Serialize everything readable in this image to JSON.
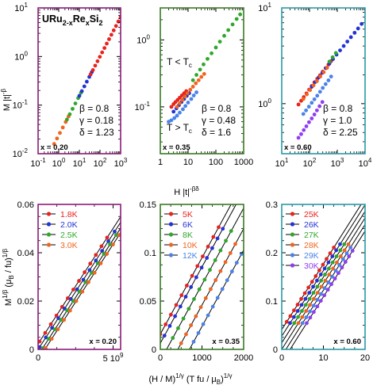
{
  "figure": {
    "compound": {
      "base": "URu",
      "sub1": "2-x",
      "mid1": "Re",
      "sub2": "x",
      "mid2": "Si",
      "sub3": "2"
    },
    "top_ylabel": "M |t|",
    "top_ylabel_exp": "-β",
    "top_xlabel": "H |t|",
    "top_xlabel_exp": "-βδ",
    "bottom_ylabel": "M",
    "bottom_ylabel_sup1": "1/β",
    "bottom_ylabel_mid": "(μ",
    "bottom_ylabel_sub": "B",
    "bottom_ylabel_mid2": " / fu)",
    "bottom_ylabel_sup2": "1/β",
    "bottom_xlabel": "(H / M)",
    "bottom_xlabel_sup1": "1/γ",
    "bottom_xlabel_mid": " (T fu / μ",
    "bottom_xlabel_sub": "B",
    "bottom_xlabel_mid2": ")",
    "bottom_xlabel_sup2": "1/γ"
  },
  "colors": {
    "red": "#e8221c",
    "blue": "#2233d6",
    "green": "#2ea82a",
    "orange": "#f0641e",
    "lightblue": "#4a82e8",
    "purple": "#8f3df0",
    "frame_x020": "#8b1a7a",
    "frame_x035": "#3a7a22",
    "frame_x060": "#2a9aa6"
  },
  "chart_data": [
    {
      "id": "top-x020",
      "type": "scatter",
      "xscale": "log",
      "yscale": "log",
      "xlim": [
        0.1,
        1000
      ],
      "ylim": [
        0.01,
        10
      ],
      "xtick_labels": [
        "10",
        "10",
        "10",
        "10",
        "10"
      ],
      "xtick_exps": [
        "-1",
        "0",
        "1",
        "2",
        "3"
      ],
      "ytick_labels": [
        "10",
        "10",
        "10",
        "10"
      ],
      "ytick_exps": [
        "-2",
        "-1",
        "0",
        "1"
      ],
      "annotations": {
        "beta": "β = 0.8",
        "gamma": "γ = 0.18",
        "delta": "δ = 1.23",
        "x_label": "x = 0.20"
      },
      "series": [
        {
          "color": "orange",
          "x_range": [
            0.6,
            3
          ],
          "slope": 0.81,
          "y_at_1": 0.024,
          "n": 6
        },
        {
          "color": "green",
          "x_range": [
            2.5,
            12
          ],
          "slope": 0.81,
          "y_at_1": 0.024,
          "n": 6
        },
        {
          "color": "blue",
          "x_range": [
            10,
            40
          ],
          "slope": 0.81,
          "y_at_1": 0.024,
          "n": 6
        },
        {
          "color": "red",
          "x_range": [
            35,
            1000
          ],
          "slope": 0.81,
          "y_at_1": 0.024,
          "n": 14
        }
      ]
    },
    {
      "id": "top-x035",
      "type": "scatter",
      "xscale": "log",
      "yscale": "log",
      "xlim": [
        1,
        1000
      ],
      "ylim": [
        0.02,
        3
      ],
      "xtick_labels": [
        "1",
        "10",
        "100",
        "1000"
      ],
      "ytick_labels": [
        "10",
        "10"
      ],
      "ytick_exps": [
        "-1",
        "0"
      ],
      "annotations": {
        "beta": "β = 0.8",
        "gamma": "γ = 0.48",
        "delta": "δ = 1.6",
        "tlt": "T < T",
        "tlt_sub": "c",
        "tgt": "T > T",
        "tgt_sub": "c",
        "x_label": "x = 0.35"
      },
      "series": [
        {
          "color": "red",
          "points": [
            [
              2.5,
              0.1
            ],
            [
              3,
              0.11
            ],
            [
              3.5,
              0.118
            ],
            [
              4.2,
              0.127
            ],
            [
              5,
              0.137
            ],
            [
              6,
              0.148
            ],
            [
              7.2,
              0.16
            ],
            [
              8.6,
              0.172
            ]
          ]
        },
        {
          "color": "blue",
          "points": [
            [
              3,
              0.085
            ],
            [
              3.8,
              0.095
            ],
            [
              4.7,
              0.106
            ],
            [
              5.8,
              0.118
            ],
            [
              7.2,
              0.131
            ],
            [
              9,
              0.146
            ],
            [
              11,
              0.16
            ]
          ]
        },
        {
          "color": "green",
          "points": [
            [
              15,
              0.25
            ],
            [
              20,
              0.3
            ],
            [
              27,
              0.36
            ],
            [
              36,
              0.43
            ],
            [
              50,
              0.52
            ],
            [
              70,
              0.63
            ],
            [
              100,
              0.77
            ],
            [
              140,
              0.94
            ],
            [
              200,
              1.15
            ],
            [
              280,
              1.4
            ],
            [
              400,
              1.7
            ],
            [
              560,
              2.05
            ],
            [
              750,
              2.4
            ]
          ]
        },
        {
          "color": "orange",
          "points": [
            [
              4,
              0.1
            ],
            [
              5,
              0.113
            ],
            [
              6.2,
              0.127
            ],
            [
              7.7,
              0.143
            ],
            [
              9.5,
              0.16
            ],
            [
              12,
              0.18
            ],
            [
              15,
              0.2
            ],
            [
              19,
              0.225
            ],
            [
              24,
              0.25
            ],
            [
              30,
              0.28
            ],
            [
              38,
              0.31
            ]
          ]
        },
        {
          "color": "lightblue",
          "points": [
            [
              2,
              0.06
            ],
            [
              2.5,
              0.063
            ],
            [
              3.2,
              0.068
            ],
            [
              4,
              0.074
            ],
            [
              5,
              0.082
            ],
            [
              6.5,
              0.092
            ],
            [
              8,
              0.103
            ],
            [
              10,
              0.116
            ],
            [
              13,
              0.131
            ],
            [
              16,
              0.148
            ],
            [
              20,
              0.165
            ]
          ]
        }
      ]
    },
    {
      "id": "top-x060",
      "type": "scatter",
      "xscale": "log",
      "yscale": "log",
      "xlim": [
        10,
        10000
      ],
      "ylim": [
        0.3,
        10
      ],
      "xtick_labels": [
        "10",
        "10",
        "10",
        "10"
      ],
      "xtick_exps": [
        "1",
        "2",
        "3",
        "4"
      ],
      "ytick_labels": [
        "10",
        "10"
      ],
      "ytick_exps": [
        "0",
        "1"
      ],
      "annotations": {
        "beta": "β = 0.8",
        "gamma": "γ = 1.0",
        "delta": "δ = 2.25",
        "x_label": "x = 0.60"
      },
      "series": [
        {
          "color": "red",
          "points": [
            [
              40,
              0.98
            ],
            [
              50,
              1.07
            ],
            [
              62,
              1.17
            ],
            [
              78,
              1.28
            ],
            [
              97,
              1.4
            ],
            [
              120,
              1.53
            ],
            [
              150,
              1.67
            ],
            [
              190,
              1.82
            ],
            [
              240,
              1.98
            ],
            [
              300,
              2.16
            ],
            [
              380,
              2.35
            ],
            [
              480,
              2.56
            ],
            [
              600,
              2.78
            ]
          ]
        },
        {
          "color": "blue",
          "points": [
            [
              120,
              1.5
            ],
            [
              160,
              1.68
            ],
            [
              215,
              1.88
            ],
            [
              290,
              2.1
            ],
            [
              390,
              2.35
            ],
            [
              520,
              2.62
            ],
            [
              700,
              2.92
            ],
            [
              940,
              3.25
            ],
            [
              1260,
              3.6
            ],
            [
              1700,
              4.0
            ],
            [
              2300,
              4.45
            ],
            [
              3100,
              4.95
            ],
            [
              4200,
              5.5
            ],
            [
              5600,
              6.1
            ],
            [
              7500,
              6.8
            ]
          ]
        },
        {
          "color": "orange",
          "points": [
            [
              60,
              1.12
            ],
            [
              80,
              1.25
            ],
            [
              105,
              1.39
            ],
            [
              140,
              1.55
            ],
            [
              185,
              1.72
            ],
            [
              245,
              1.92
            ],
            [
              325,
              2.13
            ],
            [
              430,
              2.37
            ]
          ]
        },
        {
          "color": "green",
          "points": [
            [
              520,
              2.75
            ],
            [
              680,
              3.05
            ],
            [
              890,
              3.38
            ]
          ]
        },
        {
          "color": "lightblue",
          "points": [
            [
              60,
              0.78
            ],
            [
              75,
              0.85
            ],
            [
              95,
              0.93
            ],
            [
              120,
              1.02
            ],
            [
              150,
              1.11
            ],
            [
              190,
              1.21
            ],
            [
              240,
              1.33
            ],
            [
              300,
              1.46
            ],
            [
              380,
              1.6
            ],
            [
              480,
              1.75
            ],
            [
              600,
              1.92
            ]
          ]
        },
        {
          "color": "purple",
          "points": [
            [
              40,
              0.44
            ],
            [
              50,
              0.48
            ],
            [
              62,
              0.53
            ],
            [
              77,
              0.58
            ],
            [
              96,
              0.64
            ],
            [
              120,
              0.7
            ],
            [
              150,
              0.77
            ],
            [
              185,
              0.85
            ],
            [
              230,
              0.94
            ],
            [
              290,
              1.04
            ]
          ]
        }
      ]
    },
    {
      "id": "bottom-x020",
      "type": "line",
      "xlim": [
        0,
        5500000000.0
      ],
      "ylim": [
        0,
        0.06
      ],
      "xtick_labels": [
        "0",
        "5 10"
      ],
      "xtick_values": [
        0,
        5000000000.0
      ],
      "xtick_exp_label": "9",
      "ytick_labels": [
        "0",
        "0.02",
        "0.04",
        "0.06"
      ],
      "ytick_values": [
        0,
        0.02,
        0.04,
        0.06
      ],
      "x_label": "x = 0.20",
      "legend": [
        "1.8K",
        "2.0K",
        "2.5K",
        "3.0K"
      ],
      "legend_colors": [
        "red",
        "blue",
        "green",
        "orange"
      ],
      "series": [
        {
          "name": "1.8K",
          "color": "red",
          "x0": -240000000.0,
          "slope": 9.56e-12,
          "x_range": [
            100000000.0,
            4600000000.0
          ],
          "n": 13
        },
        {
          "name": "2.0K",
          "color": "blue",
          "x0": 0,
          "slope": 9.56e-12,
          "x_range": [
            100000000.0,
            5100000000.0
          ],
          "n": 13
        },
        {
          "name": "2.5K",
          "color": "green",
          "x0": 250000000.0,
          "slope": 9.56e-12,
          "x_range": [
            300000000.0,
            5200000000.0
          ],
          "n": 13
        },
        {
          "name": "3.0K",
          "color": "orange",
          "x0": 450000000.0,
          "slope": 9.56e-12,
          "x_range": [
            500000000.0,
            5400000000.0
          ],
          "n": 13
        }
      ]
    },
    {
      "id": "bottom-x035",
      "type": "line",
      "xlim": [
        0,
        2000
      ],
      "ylim": [
        0,
        0.15
      ],
      "xtick_labels": [
        "0",
        "1000",
        "2000"
      ],
      "xtick_values": [
        0,
        1000,
        2000
      ],
      "ytick_labels": [
        "0",
        "0.05",
        "0.1",
        "0.15"
      ],
      "ytick_values": [
        0,
        0.05,
        0.1,
        0.15
      ],
      "x_label": "x = 0.35",
      "legend": [
        "5K",
        "6K",
        "8K",
        "10K",
        "12K"
      ],
      "legend_colors": [
        "red",
        "blue",
        "green",
        "orange",
        "lightblue"
      ],
      "series": [
        {
          "name": "5K",
          "color": "red",
          "x0": -200,
          "slope": 7.9e-05,
          "x_range": [
            0,
            1400
          ],
          "n": 12
        },
        {
          "name": "6K",
          "color": "blue",
          "x0": -80,
          "slope": 7.9e-05,
          "x_range": [
            100,
            1500
          ],
          "n": 12
        },
        {
          "name": "8K",
          "color": "green",
          "x0": 150,
          "slope": 7.9e-05,
          "x_range": [
            300,
            1700
          ],
          "n": 12
        },
        {
          "name": "10K",
          "color": "orange",
          "x0": 420,
          "slope": 7.9e-05,
          "x_range": [
            500,
            1800
          ],
          "n": 12
        },
        {
          "name": "12K",
          "color": "lightblue",
          "x0": 700,
          "slope": 7.9e-05,
          "x_range": [
            800,
            1950
          ],
          "n": 11
        }
      ]
    },
    {
      "id": "bottom-x060",
      "type": "line",
      "xlim": [
        0,
        20
      ],
      "ylim": [
        0,
        0.3
      ],
      "xtick_labels": [
        "0",
        "10",
        "20"
      ],
      "xtick_values": [
        0,
        10,
        20
      ],
      "ytick_labels": [
        "0",
        "0.1",
        "0.2",
        "0.3"
      ],
      "ytick_values": [
        0,
        0.1,
        0.2,
        0.3
      ],
      "x_label": "x = 0.60",
      "legend": [
        "25K",
        "26K",
        "27K",
        "28K",
        "29K",
        "30K"
      ],
      "legend_colors": [
        "red",
        "blue",
        "green",
        "orange",
        "lightblue",
        "purple"
      ],
      "series": [
        {
          "name": "25K",
          "color": "red",
          "x0": -3.0,
          "slope": 0.0136,
          "x_range": [
            1.2,
            12.5
          ],
          "n": 14
        },
        {
          "name": "26K",
          "color": "blue",
          "x0": -2.0,
          "slope": 0.0136,
          "x_range": [
            2.0,
            14.0
          ],
          "n": 14
        },
        {
          "name": "27K",
          "color": "green",
          "x0": -1.0,
          "slope": 0.0136,
          "x_range": [
            3.0,
            15.0
          ],
          "n": 14
        },
        {
          "name": "28K",
          "color": "orange",
          "x0": 0.0,
          "slope": 0.0136,
          "x_range": [
            4.0,
            16.0
          ],
          "n": 14
        },
        {
          "name": "29K",
          "color": "lightblue",
          "x0": 1.0,
          "slope": 0.0136,
          "x_range": [
            5.0,
            16.5
          ],
          "n": 14
        },
        {
          "name": "30K",
          "color": "purple",
          "x0": 2.0,
          "slope": 0.0136,
          "x_range": [
            6.0,
            17.0
          ],
          "n": 14
        }
      ]
    }
  ]
}
